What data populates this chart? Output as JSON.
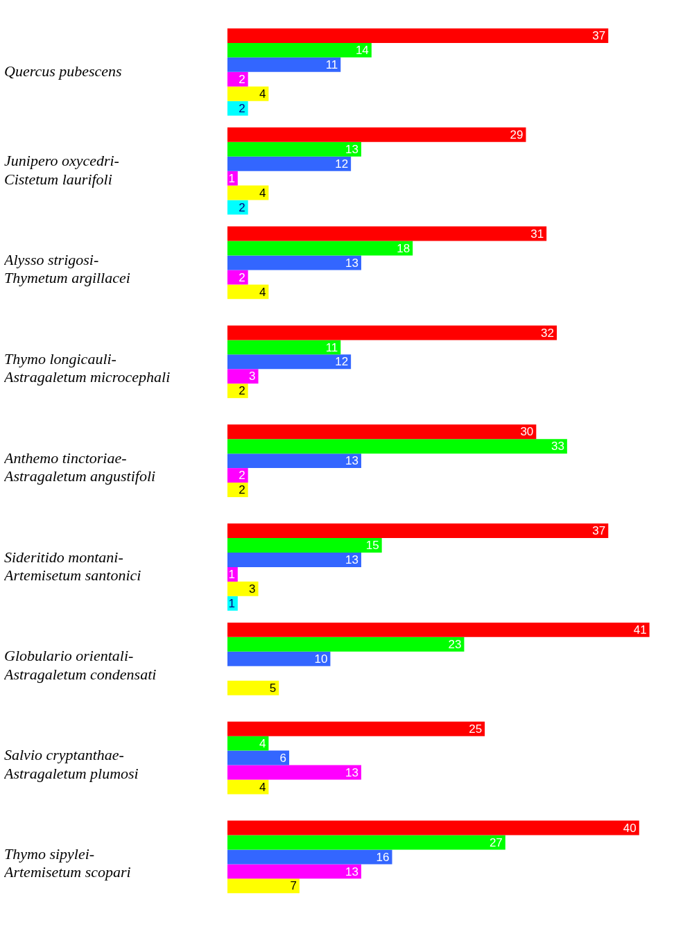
{
  "chart_data": {
    "type": "bar",
    "orientation": "horizontal",
    "data_labels": true,
    "legend": false,
    "tick_labels": "y",
    "categories": [
      "Quercus pubescens",
      "Junipero oxycedri-Cistetum laurifoli",
      "Alysso strigosi-Thymetum argillacei",
      "Thymo longicauli-Astragaletum microcephali",
      "Anthemo tinctoriae-Astragaletum angustifoli",
      "Sideritido montani-Artemisetum santonici",
      "Globulario orientali-Astragaletum condensati",
      "Salvio cryptanthae-Astragaletum plumosi",
      "Thymo sipylei-Artemisetum scopari"
    ],
    "series": [
      {
        "color": "#ff0000",
        "values": [
          37,
          29,
          31,
          32,
          30,
          37,
          41,
          25,
          40
        ]
      },
      {
        "color": "#00ff00",
        "values": [
          14,
          13,
          18,
          11,
          33,
          15,
          23,
          4,
          27
        ]
      },
      {
        "color": "#3366ff",
        "values": [
          11,
          12,
          13,
          12,
          13,
          13,
          10,
          6,
          16
        ]
      },
      {
        "color": "#ff00ff",
        "values": [
          2,
          1,
          2,
          3,
          2,
          1,
          null,
          13,
          13
        ]
      },
      {
        "color": "#ffff00",
        "values": [
          4,
          4,
          4,
          2,
          2,
          3,
          5,
          4,
          7
        ]
      },
      {
        "color": "#00ffff",
        "values": [
          2,
          2,
          null,
          null,
          null,
          1,
          null,
          null,
          null
        ]
      }
    ]
  }
}
